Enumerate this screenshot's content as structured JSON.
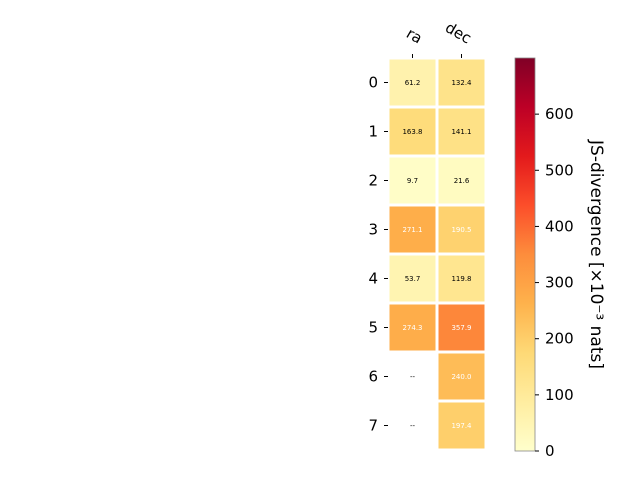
{
  "chart_data": {
    "type": "heatmap",
    "columns": [
      "ra",
      "dec"
    ],
    "rows": [
      "0",
      "1",
      "2",
      "3",
      "4",
      "5",
      "6",
      "7"
    ],
    "values": [
      [
        61.2,
        132.4
      ],
      [
        163.8,
        141.1
      ],
      [
        9.7,
        21.6
      ],
      [
        271.1,
        190.5
      ],
      [
        53.7,
        119.8
      ],
      [
        274.3,
        357.9
      ],
      [
        null,
        240.0
      ],
      [
        null,
        197.4
      ]
    ],
    "missing_label": "--",
    "colorbar": {
      "label": "JS-divergence [×10⁻³ nats]",
      "range": [
        0,
        700
      ],
      "ticks": [
        0,
        100,
        200,
        300,
        400,
        500,
        600
      ],
      "colormap": "YlOrRd"
    },
    "colors": {
      "cmap": [
        "#ffffcc",
        "#ffeda0",
        "#fed976",
        "#feb24c",
        "#fd8d3c",
        "#fc4e2a",
        "#e31a1c",
        "#bd0026",
        "#800026"
      ]
    }
  }
}
